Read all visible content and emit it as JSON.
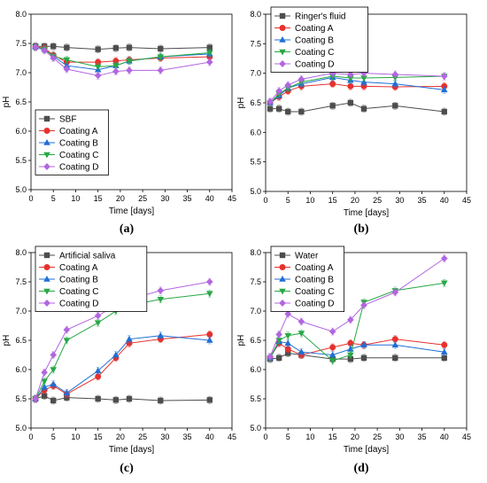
{
  "figure": {
    "panels": [
      "(a)",
      "(b)",
      "(c)",
      "(d)"
    ]
  },
  "chart_data": [
    {
      "type": "line",
      "panel_label": "(a)",
      "xlabel": "Time [days]",
      "ylabel": "pH",
      "xlim": [
        0,
        45
      ],
      "ylim": [
        5.0,
        8.0
      ],
      "xticks": [
        0,
        5,
        10,
        15,
        20,
        25,
        30,
        35,
        40,
        45
      ],
      "yticks": [
        5.0,
        5.5,
        6.0,
        6.5,
        7.0,
        7.5,
        8.0
      ],
      "grid": false,
      "legend_position": "bottom-left",
      "x": [
        1,
        3,
        5,
        8,
        15,
        19,
        22,
        29,
        40
      ],
      "series": [
        {
          "name": "SBF",
          "color": "#4d4d4d",
          "marker": "square",
          "values": [
            7.45,
            7.45,
            7.45,
            7.43,
            7.4,
            7.42,
            7.43,
            7.41,
            7.43
          ]
        },
        {
          "name": "Coating A",
          "color": "#e8312d",
          "marker": "circle",
          "values": [
            7.44,
            7.42,
            7.3,
            7.18,
            7.18,
            7.2,
            7.22,
            7.25,
            7.27
          ]
        },
        {
          "name": "Coating B",
          "color": "#1f6fd6",
          "marker": "triangle-up",
          "values": [
            7.44,
            7.4,
            7.28,
            7.12,
            7.05,
            7.12,
            7.2,
            7.27,
            7.32
          ]
        },
        {
          "name": "Coating C",
          "color": "#27a845",
          "marker": "triangle-down",
          "values": [
            7.44,
            7.4,
            7.28,
            7.22,
            7.1,
            7.12,
            7.2,
            7.27,
            7.34
          ]
        },
        {
          "name": "Coating D",
          "color": "#b266e0",
          "marker": "diamond",
          "values": [
            7.44,
            7.38,
            7.25,
            7.06,
            6.95,
            7.02,
            7.04,
            7.04,
            7.18
          ]
        }
      ]
    },
    {
      "type": "line",
      "panel_label": "(b)",
      "xlabel": "Time [days]",
      "ylabel": "pH",
      "xlim": [
        0,
        45
      ],
      "ylim": [
        5.0,
        8.0
      ],
      "xticks": [
        0,
        5,
        10,
        15,
        20,
        25,
        30,
        35,
        40,
        45
      ],
      "yticks": [
        5.0,
        5.5,
        6.0,
        6.5,
        7.0,
        7.5,
        8.0
      ],
      "grid": false,
      "legend_position": "top-left",
      "x": [
        1,
        3,
        5,
        8,
        15,
        19,
        22,
        29,
        40
      ],
      "series": [
        {
          "name": "Ringer's fluid",
          "color": "#4d4d4d",
          "marker": "square",
          "values": [
            6.4,
            6.4,
            6.35,
            6.35,
            6.45,
            6.5,
            6.4,
            6.45,
            6.35
          ]
        },
        {
          "name": "Coating A",
          "color": "#e8312d",
          "marker": "circle",
          "values": [
            6.5,
            6.6,
            6.7,
            6.78,
            6.82,
            6.78,
            6.78,
            6.77,
            6.78
          ]
        },
        {
          "name": "Coating B",
          "color": "#1f6fd6",
          "marker": "triangle-up",
          "values": [
            6.5,
            6.62,
            6.75,
            6.82,
            6.93,
            6.88,
            6.85,
            6.82,
            6.72
          ]
        },
        {
          "name": "Coating C",
          "color": "#27a845",
          "marker": "triangle-down",
          "values": [
            6.5,
            6.65,
            6.75,
            6.85,
            6.95,
            6.92,
            6.92,
            6.93,
            6.95
          ]
        },
        {
          "name": "Coating D",
          "color": "#b266e0",
          "marker": "diamond",
          "values": [
            6.52,
            6.7,
            6.8,
            6.9,
            7.0,
            6.98,
            7.0,
            6.98,
            6.95
          ]
        }
      ]
    },
    {
      "type": "line",
      "panel_label": "(c)",
      "xlabel": "Time [days]",
      "ylabel": "pH",
      "xlim": [
        0,
        45
      ],
      "ylim": [
        5.0,
        8.0
      ],
      "xticks": [
        0,
        5,
        10,
        15,
        20,
        25,
        30,
        35,
        40,
        45
      ],
      "yticks": [
        5.0,
        5.5,
        6.0,
        6.5,
        7.0,
        7.5,
        8.0
      ],
      "grid": false,
      "legend_position": "top-left",
      "x": [
        1,
        3,
        5,
        8,
        15,
        19,
        22,
        29,
        40
      ],
      "series": [
        {
          "name": "Artificial saliva",
          "color": "#4d4d4d",
          "marker": "square",
          "values": [
            5.5,
            5.55,
            5.47,
            5.52,
            5.5,
            5.48,
            5.5,
            5.47,
            5.48
          ]
        },
        {
          "name": "Coating A",
          "color": "#e8312d",
          "marker": "circle",
          "values": [
            5.5,
            5.65,
            5.72,
            5.58,
            5.88,
            6.2,
            6.45,
            6.52,
            6.6
          ]
        },
        {
          "name": "Coating B",
          "color": "#1f6fd6",
          "marker": "triangle-up",
          "values": [
            5.5,
            5.7,
            5.75,
            5.6,
            5.98,
            6.25,
            6.52,
            6.58,
            6.5
          ]
        },
        {
          "name": "Coating C",
          "color": "#27a845",
          "marker": "triangle-down",
          "values": [
            5.5,
            5.8,
            6.0,
            6.5,
            6.8,
            7.0,
            7.1,
            7.2,
            7.3
          ]
        },
        {
          "name": "Coating D",
          "color": "#b266e0",
          "marker": "diamond",
          "values": [
            5.5,
            5.95,
            6.25,
            6.68,
            6.92,
            7.1,
            7.2,
            7.35,
            7.5
          ]
        }
      ]
    },
    {
      "type": "line",
      "panel_label": "(d)",
      "xlabel": "Time [days]",
      "ylabel": "pH",
      "xlim": [
        0,
        45
      ],
      "ylim": [
        5.0,
        8.0
      ],
      "xticks": [
        0,
        5,
        10,
        15,
        20,
        25,
        30,
        35,
        40,
        45
      ],
      "yticks": [
        5.0,
        5.5,
        6.0,
        6.5,
        7.0,
        7.5,
        8.0
      ],
      "grid": false,
      "legend_position": "top-left",
      "x": [
        1,
        3,
        5,
        8,
        15,
        19,
        22,
        29,
        40
      ],
      "series": [
        {
          "name": "Water",
          "color": "#4d4d4d",
          "marker": "square",
          "values": [
            6.18,
            6.2,
            6.28,
            6.25,
            6.18,
            6.18,
            6.2,
            6.2,
            6.2
          ]
        },
        {
          "name": "Coating A",
          "color": "#e8312d",
          "marker": "circle",
          "values": [
            6.2,
            6.45,
            6.35,
            6.25,
            6.38,
            6.45,
            6.42,
            6.52,
            6.42
          ]
        },
        {
          "name": "Coating B",
          "color": "#1f6fd6",
          "marker": "triangle-up",
          "values": [
            6.2,
            6.48,
            6.45,
            6.3,
            6.25,
            6.35,
            6.42,
            6.42,
            6.3
          ]
        },
        {
          "name": "Coating C",
          "color": "#27a845",
          "marker": "triangle-down",
          "values": [
            6.2,
            6.5,
            6.58,
            6.62,
            6.15,
            6.25,
            7.15,
            7.35,
            7.48
          ]
        },
        {
          "name": "Coating D",
          "color": "#b266e0",
          "marker": "diamond",
          "values": [
            6.22,
            6.6,
            6.95,
            6.82,
            6.65,
            6.85,
            7.1,
            7.32,
            7.9
          ]
        }
      ]
    }
  ]
}
